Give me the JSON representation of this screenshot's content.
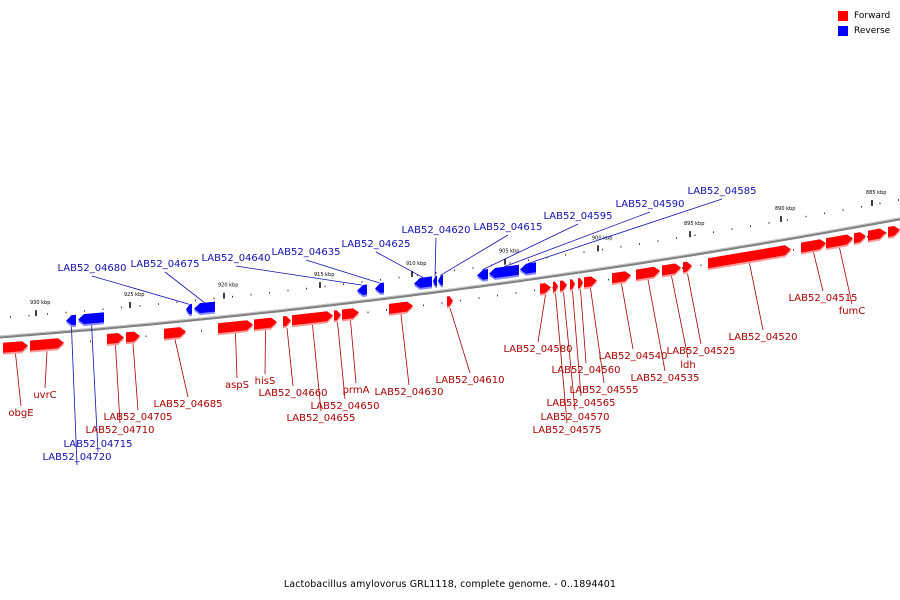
{
  "caption": "Lactobacillus amylovorus GRL1118, complete genome. - 0..1894401",
  "legend": [
    {
      "label": "Forward",
      "color": "#ff0000"
    },
    {
      "label": "Reverse",
      "color": "#0000ff"
    }
  ],
  "colors": {
    "forward": "#ff0000",
    "reverse": "#0000ff",
    "backbone": "#808080",
    "forward_label": "#aa0000",
    "reverse_label": "#1010b0"
  },
  "ticks": [
    {
      "label": "930 kbp",
      "kbp": 930
    },
    {
      "label": "925 kbp",
      "kbp": 925
    },
    {
      "label": "920 kbp",
      "kbp": 920
    },
    {
      "label": "915 kbp",
      "kbp": 915
    },
    {
      "label": "910 kbp",
      "kbp": 910
    },
    {
      "label": "905 kbp",
      "kbp": 905
    },
    {
      "label": "900 kbp",
      "kbp": 900
    },
    {
      "label": "895 kbp",
      "kbp": 895
    },
    {
      "label": "890 kbp",
      "kbp": 890
    },
    {
      "label": "885 kbp",
      "kbp": 885
    }
  ],
  "genes": [
    {
      "label": "obgE",
      "strand": "forward"
    },
    {
      "label": "uvrC",
      "strand": "forward"
    },
    {
      "label": "LAB52_04720",
      "strand": "reverse"
    },
    {
      "label": "LAB52_04715",
      "strand": "reverse"
    },
    {
      "label": "LAB52_04710",
      "strand": "forward"
    },
    {
      "label": "LAB52_04705",
      "strand": "forward"
    },
    {
      "label": "LAB52_04685",
      "strand": "forward"
    },
    {
      "label": "LAB52_04680",
      "strand": "reverse"
    },
    {
      "label": "LAB52_04675",
      "strand": "reverse"
    },
    {
      "label": "aspS",
      "strand": "forward"
    },
    {
      "label": "hisS",
      "strand": "forward"
    },
    {
      "label": "LAB52_04660",
      "strand": "forward"
    },
    {
      "label": "LAB52_04655",
      "strand": "forward"
    },
    {
      "label": "LAB52_04650",
      "strand": "forward"
    },
    {
      "label": "prmA",
      "strand": "forward"
    },
    {
      "label": "LAB52_04640",
      "strand": "reverse"
    },
    {
      "label": "LAB52_04635",
      "strand": "reverse"
    },
    {
      "label": "LAB52_04630",
      "strand": "forward"
    },
    {
      "label": "LAB52_04625",
      "strand": "reverse"
    },
    {
      "label": "LAB52_04620",
      "strand": "reverse"
    },
    {
      "label": "LAB52_04615",
      "strand": "reverse"
    },
    {
      "label": "LAB52_04610",
      "strand": "forward"
    },
    {
      "label": "LAB52_04595",
      "strand": "reverse"
    },
    {
      "label": "LAB52_04590",
      "strand": "reverse"
    },
    {
      "label": "LAB52_04585",
      "strand": "reverse"
    },
    {
      "label": "LAB52_04580",
      "strand": "forward"
    },
    {
      "label": "LAB52_04575",
      "strand": "forward"
    },
    {
      "label": "LAB52_04570",
      "strand": "forward"
    },
    {
      "label": "LAB52_04565",
      "strand": "forward"
    },
    {
      "label": "LAB52_04560",
      "strand": "forward"
    },
    {
      "label": "LAB52_04555",
      "strand": "forward"
    },
    {
      "label": "LAB52_04540",
      "strand": "forward"
    },
    {
      "label": "LAB52_04535",
      "strand": "forward"
    },
    {
      "label": "ldh",
      "strand": "forward"
    },
    {
      "label": "LAB52_04525",
      "strand": "forward"
    },
    {
      "label": "LAB52_04520",
      "strand": "forward"
    },
    {
      "label": "LAB52_04515",
      "strand": "forward"
    },
    {
      "label": "fumC",
      "strand": "forward"
    }
  ]
}
